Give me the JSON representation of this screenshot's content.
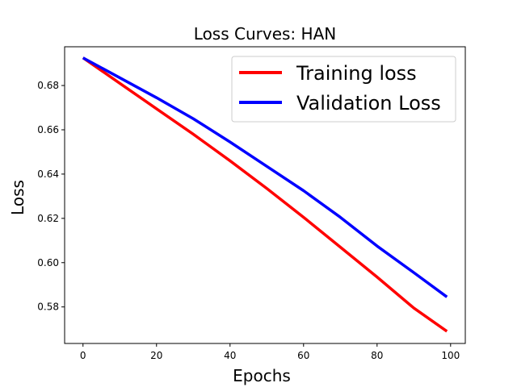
{
  "chart_data": {
    "type": "line",
    "title": "Loss Curves: HAN",
    "xlabel": "Epochs",
    "ylabel": "Loss",
    "xlim": [
      -5,
      104
    ],
    "ylim": [
      0.5635,
      0.6975
    ],
    "xticks": [
      0,
      20,
      40,
      60,
      80,
      100
    ],
    "yticks": [
      0.58,
      0.6,
      0.62,
      0.64,
      0.66,
      0.68
    ],
    "ytick_labels": [
      "0.58",
      "0.60",
      "0.62",
      "0.64",
      "0.66",
      "0.68"
    ],
    "grid": false,
    "legend_position": "top-right",
    "series": [
      {
        "name": "Training loss",
        "color": "#ff0000",
        "x": [
          0,
          10,
          20,
          30,
          40,
          50,
          60,
          70,
          80,
          90,
          99
        ],
        "y": [
          0.6925,
          0.681,
          0.6695,
          0.658,
          0.646,
          0.6335,
          0.6205,
          0.607,
          0.5935,
          0.5795,
          0.569
        ]
      },
      {
        "name": "Validation Loss",
        "color": "#0000ff",
        "x": [
          0,
          10,
          20,
          30,
          40,
          50,
          60,
          70,
          80,
          90,
          99
        ],
        "y": [
          0.6925,
          0.6835,
          0.6745,
          0.665,
          0.6545,
          0.6435,
          0.6325,
          0.6205,
          0.6075,
          0.5955,
          0.5845
        ]
      }
    ]
  }
}
